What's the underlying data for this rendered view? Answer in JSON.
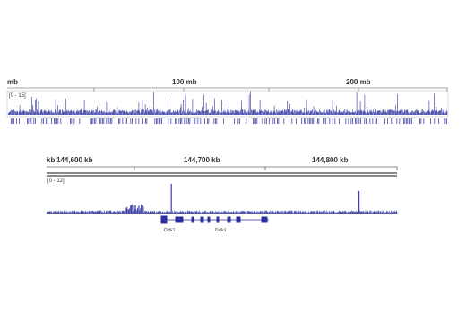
{
  "genome_panel": {
    "unit": "mb",
    "ticks": [
      "100 mb",
      "200 mb"
    ],
    "range": "[0 - 15]"
  },
  "locus_panel": {
    "unit": "kb",
    "ticks": [
      "144,600 kb",
      "144,700 kb",
      "144,800 kb"
    ],
    "range": "[0 - 12]",
    "genes": [
      "Dclk1",
      "Dclk1"
    ]
  }
}
